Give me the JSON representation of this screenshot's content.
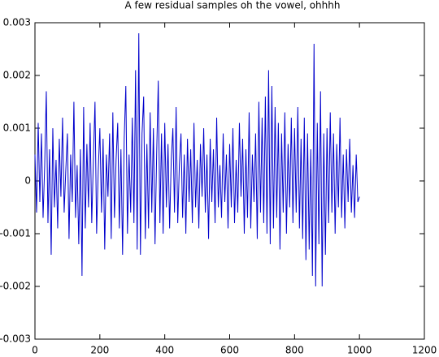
{
  "chart_data": {
    "type": "line",
    "title": "A few residual samples oh the vowel, ohhhh",
    "x": [
      0,
      5,
      10,
      15,
      20,
      25,
      30,
      35,
      40,
      45,
      50,
      55,
      60,
      65,
      70,
      75,
      80,
      85,
      90,
      95,
      100,
      105,
      110,
      115,
      120,
      125,
      130,
      135,
      140,
      145,
      150,
      155,
      160,
      165,
      170,
      175,
      180,
      185,
      190,
      195,
      200,
      205,
      210,
      215,
      220,
      225,
      230,
      235,
      240,
      245,
      250,
      255,
      260,
      265,
      270,
      275,
      280,
      285,
      290,
      295,
      300,
      305,
      310,
      315,
      320,
      325,
      330,
      335,
      340,
      345,
      350,
      355,
      360,
      365,
      370,
      375,
      380,
      385,
      390,
      395,
      400,
      405,
      410,
      415,
      420,
      425,
      430,
      435,
      440,
      445,
      450,
      455,
      460,
      465,
      470,
      475,
      480,
      485,
      490,
      495,
      500,
      505,
      510,
      515,
      520,
      525,
      530,
      535,
      540,
      545,
      550,
      555,
      560,
      565,
      570,
      575,
      580,
      585,
      590,
      595,
      600,
      605,
      610,
      615,
      620,
      625,
      630,
      635,
      640,
      645,
      650,
      655,
      660,
      665,
      670,
      675,
      680,
      685,
      690,
      695,
      700,
      705,
      710,
      715,
      720,
      725,
      730,
      735,
      740,
      745,
      750,
      755,
      760,
      765,
      770,
      775,
      780,
      785,
      790,
      795,
      800,
      805,
      810,
      815,
      820,
      825,
      830,
      835,
      840,
      845,
      850,
      855,
      860,
      865,
      870,
      875,
      880,
      885,
      890,
      895,
      900,
      905,
      910,
      915,
      920,
      925,
      930,
      935,
      940,
      945,
      950,
      955,
      960,
      965,
      970,
      975,
      980,
      985,
      990,
      995,
      1000
    ],
    "series": [
      {
        "color": "#0000cc",
        "values": [
          0.0005,
          -0.0006,
          0.0011,
          -0.0004,
          0.0009,
          -0.0007,
          0.0003,
          0.0017,
          -0.0008,
          0.0006,
          -0.0014,
          0.001,
          -0.0005,
          0.0004,
          -0.0009,
          0.0008,
          -0.0003,
          0.0012,
          -0.0006,
          0.0002,
          0.0009,
          -0.0011,
          0.0005,
          -0.0004,
          0.0015,
          -0.0007,
          0.0003,
          -0.0012,
          0.0006,
          -0.0018,
          0.0014,
          -0.0009,
          0.0007,
          -0.0005,
          0.0011,
          -0.0008,
          0.0004,
          0.0015,
          -0.001,
          0.0002,
          0.001,
          -0.0006,
          0.0008,
          -0.0013,
          0.0005,
          -0.0003,
          0.0009,
          -0.0011,
          0.0013,
          -0.0007,
          0.0004,
          0.0011,
          -0.0009,
          0.0006,
          -0.0014,
          0.0008,
          0.0018,
          -0.001,
          0.0005,
          -0.0006,
          0.0012,
          -0.0008,
          0.0021,
          -0.0013,
          0.0028,
          -0.0014,
          0.0009,
          0.0016,
          -0.0011,
          0.0007,
          -0.0009,
          0.0013,
          -0.0006,
          0.001,
          -0.0012,
          0.0005,
          0.0019,
          -0.0008,
          0.0009,
          -0.001,
          0.0011,
          -0.0005,
          0.0007,
          -0.0009,
          0.0004,
          0.001,
          -0.0006,
          0.0014,
          -0.0008,
          0.0003,
          0.0009,
          -0.0007,
          0.0005,
          -0.001,
          0.0008,
          -0.0004,
          0.0006,
          -0.0008,
          0.0011,
          -0.0005,
          0.0004,
          -0.0009,
          0.0007,
          -0.0003,
          0.001,
          -0.0006,
          0.0005,
          -0.0011,
          0.0008,
          -0.0004,
          0.0006,
          -0.0008,
          0.0012,
          -0.0005,
          0.0003,
          -0.0007,
          0.0009,
          -0.0004,
          0.0005,
          -0.0009,
          0.0007,
          -0.0005,
          0.001,
          -0.0008,
          0.0004,
          -0.0006,
          0.0011,
          -0.0003,
          0.0008,
          -0.001,
          0.0006,
          -0.0007,
          0.0013,
          -0.0009,
          0.0005,
          -0.0004,
          0.0009,
          -0.0011,
          0.0015,
          -0.0006,
          0.0012,
          -0.0008,
          0.0016,
          -0.001,
          0.0021,
          -0.0012,
          0.0018,
          -0.0009,
          0.0014,
          -0.0007,
          0.0011,
          -0.0013,
          0.0009,
          -0.0006,
          0.0013,
          -0.001,
          0.0007,
          -0.0005,
          0.0012,
          -0.0008,
          0.001,
          -0.0006,
          0.0014,
          -0.0009,
          0.0008,
          -0.0011,
          0.0012,
          -0.0015,
          0.0009,
          -0.0013,
          0.0006,
          -0.0018,
          0.0026,
          -0.002,
          0.0011,
          -0.0012,
          0.0017,
          -0.002,
          0.0009,
          -0.0014,
          0.001,
          -0.0008,
          0.0013,
          -0.0006,
          0.0009,
          -0.001,
          0.0007,
          -0.0005,
          0.0012,
          -0.0007,
          0.0005,
          -0.0009,
          0.0006,
          -0.0004,
          0.0008,
          -0.0006,
          0.0003,
          -0.0007,
          0.0005,
          -0.0004,
          -0.0003
        ]
      }
    ],
    "xlim": [
      0,
      1200
    ],
    "xticks": [
      0,
      200,
      400,
      600,
      800,
      1000,
      1200
    ],
    "ylim": [
      -0.003,
      0.003
    ],
    "yticks": [
      -0.003,
      -0.002,
      -0.001,
      0,
      0.001,
      0.002,
      0.003
    ]
  }
}
